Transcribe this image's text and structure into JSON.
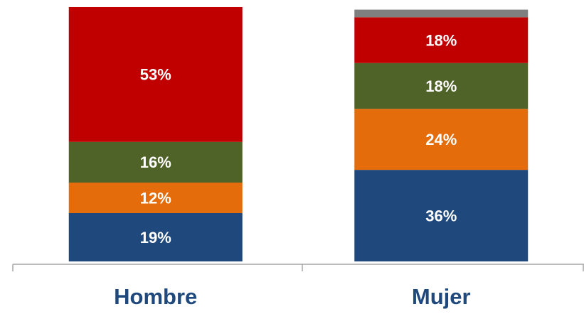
{
  "chart_data": {
    "type": "stacked_bar",
    "categories": [
      "Hombre",
      "Mujer"
    ],
    "ylim": [
      0,
      100
    ],
    "series": [
      {
        "color": "#1f497d",
        "values": [
          19,
          36
        ],
        "value_labels": [
          "19%",
          "36%"
        ]
      },
      {
        "color": "#e46c0a",
        "values": [
          12,
          24
        ],
        "value_labels": [
          "12%",
          "24%"
        ]
      },
      {
        "color": "#4f6228",
        "values": [
          16,
          18
        ],
        "value_labels": [
          "16%",
          "18%"
        ]
      },
      {
        "color": "#c00000",
        "values": [
          53,
          18
        ],
        "value_labels": [
          "53%",
          "18%"
        ]
      },
      {
        "color": "#7f7f7f",
        "values": [
          null,
          3
        ]
      }
    ]
  }
}
